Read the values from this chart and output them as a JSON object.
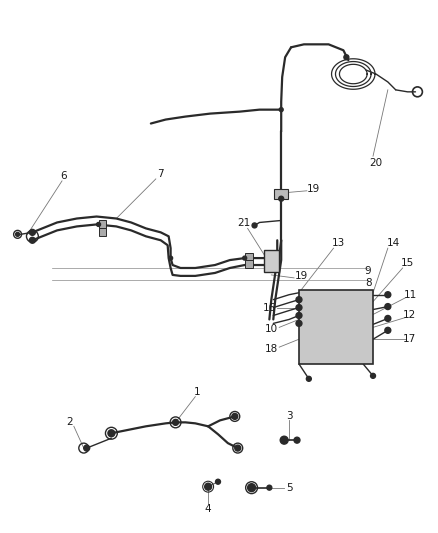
{
  "background_color": "#ffffff",
  "line_color": "#2a2a2a",
  "label_color": "#1a1a1a",
  "label_fontsize": 7.5,
  "figsize": [
    4.38,
    5.33
  ],
  "dpi": 100
}
